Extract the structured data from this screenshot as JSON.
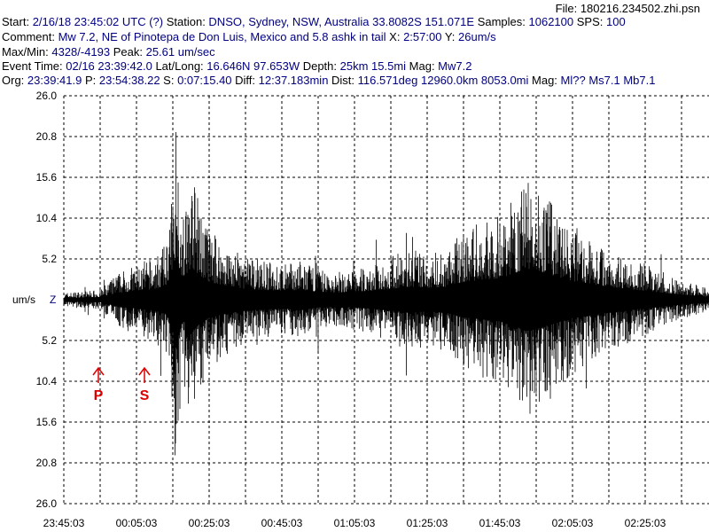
{
  "header": {
    "file_label": "File:",
    "file_value": "180216.234502.zhi.psn",
    "line1": [
      {
        "t": "Start: ",
        "c": "k"
      },
      {
        "t": "2/16/18 23:45:02 UTC (?)",
        "c": "v"
      },
      {
        "t": " Station: ",
        "c": "k"
      },
      {
        "t": "DNSO, Sydney, NSW, Australia 33.8082S 151.071E",
        "c": "v"
      },
      {
        "t": " Samples: ",
        "c": "k"
      },
      {
        "t": "1062100",
        "c": "v"
      },
      {
        "t": "  SPS: ",
        "c": "k"
      },
      {
        "t": "100",
        "c": "v"
      }
    ],
    "line2": [
      {
        "t": "Comment: ",
        "c": "k"
      },
      {
        "t": "Mw 7.2, NE of Pinotepa de Don Luis, Mexico and 5.8 ashk in tail",
        "c": "v"
      },
      {
        "t": "  X: ",
        "c": "k"
      },
      {
        "t": "2:57:00",
        "c": "v"
      },
      {
        "t": " Y: ",
        "c": "k"
      },
      {
        "t": "26um/s",
        "c": "v"
      }
    ],
    "line3": [
      {
        "t": "Max/Min: ",
        "c": "k"
      },
      {
        "t": "4328/-4193",
        "c": "v"
      },
      {
        "t": "  Peak: ",
        "c": "k"
      },
      {
        "t": "25.61 um/sec",
        "c": "v"
      }
    ],
    "line4": [
      {
        "t": "Event Time: ",
        "c": "k"
      },
      {
        "t": "02/16 23:39:42.0",
        "c": "v"
      },
      {
        "t": " Lat/Long: ",
        "c": "k"
      },
      {
        "t": "16.646N 97.653W",
        "c": "v"
      },
      {
        "t": " Depth: ",
        "c": "k"
      },
      {
        "t": "25km 15.5mi",
        "c": "v"
      },
      {
        "t": " Mag: ",
        "c": "k"
      },
      {
        "t": "Mw7.2",
        "c": "v"
      }
    ],
    "line5": [
      {
        "t": "Org: ",
        "c": "k"
      },
      {
        "t": "23:39:41.9",
        "c": "v"
      },
      {
        "t": " P: ",
        "c": "k"
      },
      {
        "t": "23:54:38.22",
        "c": "v"
      },
      {
        "t": " S: ",
        "c": "k"
      },
      {
        "t": "0:07:15.40",
        "c": "v"
      },
      {
        "t": " Diff: ",
        "c": "k"
      },
      {
        "t": "12:37.183min",
        "c": "v"
      },
      {
        "t": " Dist: ",
        "c": "k"
      },
      {
        "t": "116.571deg 12960.0km 8053.0mi",
        "c": "v"
      },
      {
        "t": "  Mag: ",
        "c": "k"
      },
      {
        "t": "Ml?? Ms7.1 Mb7.1",
        "c": "v"
      }
    ]
  },
  "chart_data": {
    "type": "line",
    "ylabel": "um/s",
    "channel": "Z",
    "x_ticks": [
      "23:45:03",
      "00:05:03",
      "00:25:03",
      "00:45:03",
      "01:05:03",
      "01:25:03",
      "01:45:03",
      "02:05:03",
      "02:25:03"
    ],
    "y_ticks_upper": [
      "26.0",
      "20.8",
      "15.6",
      "10.4",
      "5.2"
    ],
    "y_ticks_lower": [
      "5.2",
      "10.4",
      "15.6",
      "20.8",
      "26.0"
    ],
    "ylim": [
      -26.0,
      26.0
    ],
    "x_range_minutes": [
      0,
      177
    ],
    "series_envelope": {
      "name": "",
      "t_minutes": [
        0,
        10,
        15,
        20,
        25,
        28,
        30,
        31,
        32,
        33,
        34,
        35,
        37,
        40,
        45,
        50,
        55,
        60,
        65,
        70,
        75,
        80,
        85,
        90,
        95,
        100,
        105,
        110,
        115,
        120,
        125,
        127,
        130,
        135,
        140,
        145,
        150,
        155,
        160,
        165,
        170,
        177
      ],
      "amplitude": [
        0.9,
        1.3,
        3.5,
        4.5,
        5.5,
        7.0,
        14.0,
        26.0,
        14.0,
        11.0,
        13.0,
        17.0,
        13.0,
        9.0,
        7.0,
        5.5,
        5.0,
        4.5,
        5.0,
        4.0,
        3.5,
        4.0,
        4.5,
        5.5,
        6.5,
        6.0,
        6.5,
        9.0,
        10.0,
        11.0,
        14.0,
        16.0,
        15.0,
        12.0,
        9.5,
        8.0,
        6.5,
        5.5,
        4.5,
        3.5,
        2.5,
        1.5
      ]
    },
    "annotations": [
      {
        "label": "P",
        "time": "23:54:38",
        "color": "#dd0000"
      },
      {
        "label": "S",
        "time": "00:07:15",
        "color": "#dd0000"
      }
    ],
    "grid": true
  }
}
